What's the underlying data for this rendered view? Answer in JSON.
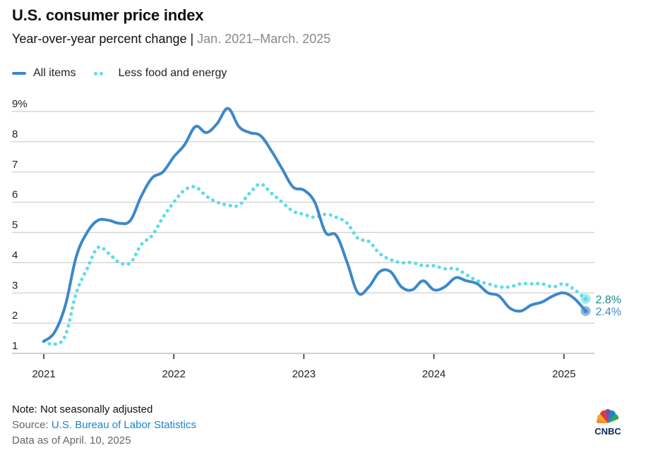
{
  "header": {
    "title": "U.S. consumer price index",
    "subtitle_main": "Year-over-year percent change | ",
    "subtitle_range": "Jan. 2021–March. 2025"
  },
  "legend": {
    "items": [
      {
        "label": "All items",
        "style": "solid",
        "color": "#3d88c9"
      },
      {
        "label": "Less food and energy",
        "style": "dotted",
        "color": "#5ddce8"
      }
    ]
  },
  "footer": {
    "note": "Note: Not seasonally adjusted",
    "source_prefix": "Source: ",
    "source_link": "U.S. Bureau of Labor Statistics",
    "as_of": "Data as of April. 10, 2025"
  },
  "logo": {
    "text": "CNBC"
  },
  "chart_data": {
    "type": "line",
    "title": "U.S. consumer price index",
    "subtitle": "Year-over-year percent change | Jan. 2021–March. 2025",
    "xlabel": "",
    "ylabel": "",
    "ylim": [
      1,
      9
    ],
    "yticks": [
      1,
      2,
      3,
      4,
      5,
      6,
      7,
      8,
      9
    ],
    "ytick_labels": [
      "1",
      "2",
      "3",
      "4",
      "5",
      "6",
      "7",
      "8",
      "9%"
    ],
    "xticks": [
      "2021",
      "2022",
      "2023",
      "2024",
      "2025"
    ],
    "x_start": "2021-01",
    "x_end": "2025-03",
    "grid": true,
    "legend_position": "top-left",
    "series": [
      {
        "name": "All items",
        "color": "#3d88c9",
        "style": "solid",
        "end_label": "2.4%",
        "values": [
          1.4,
          1.7,
          2.6,
          4.2,
          5.0,
          5.4,
          5.4,
          5.3,
          5.4,
          6.2,
          6.8,
          7.0,
          7.5,
          7.9,
          8.5,
          8.3,
          8.6,
          9.1,
          8.5,
          8.3,
          8.2,
          7.7,
          7.1,
          6.5,
          6.4,
          6.0,
          5.0,
          4.9,
          4.0,
          3.0,
          3.2,
          3.7,
          3.7,
          3.2,
          3.1,
          3.4,
          3.1,
          3.2,
          3.5,
          3.4,
          3.3,
          3.0,
          2.9,
          2.5,
          2.4,
          2.6,
          2.7,
          2.9,
          3.0,
          2.8,
          2.4
        ]
      },
      {
        "name": "Less food and energy",
        "color": "#5ddce8",
        "style": "dotted",
        "end_label": "2.8%",
        "end_label_color": "#1a8a8e",
        "values": [
          1.4,
          1.3,
          1.6,
          3.0,
          3.8,
          4.5,
          4.3,
          4.0,
          4.0,
          4.6,
          4.9,
          5.5,
          6.0,
          6.4,
          6.5,
          6.2,
          6.0,
          5.9,
          5.9,
          6.3,
          6.6,
          6.3,
          6.0,
          5.7,
          5.6,
          5.5,
          5.6,
          5.5,
          5.3,
          4.8,
          4.7,
          4.3,
          4.1,
          4.0,
          4.0,
          3.9,
          3.9,
          3.8,
          3.8,
          3.6,
          3.4,
          3.3,
          3.2,
          3.2,
          3.3,
          3.3,
          3.3,
          3.2,
          3.3,
          3.1,
          2.8
        ]
      }
    ]
  }
}
